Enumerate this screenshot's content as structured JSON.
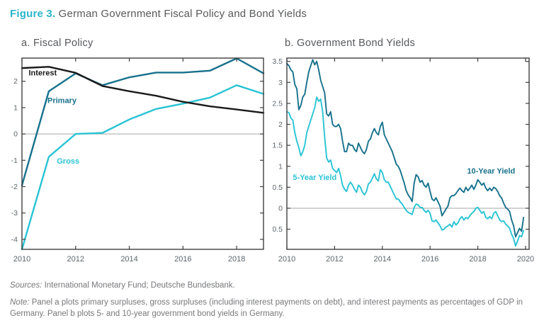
{
  "title": {
    "prefix": "Figure 3.",
    "rest": " German Government Fiscal Policy and Bond Yields"
  },
  "colors": {
    "accent": "#2ab5c9",
    "title_text": "#58595b",
    "heading_text": "#56585c",
    "frame": "#3e3e3e",
    "tick_text": "#5d666d",
    "zero_line": "#a6a6a6",
    "dark_teal": "#17718c",
    "cyan": "#29c3d4",
    "black_line": "#1a1a1a",
    "note_text": "#77787b"
  },
  "chart_data": [
    {
      "type": "line",
      "title": "a. Fiscal Policy",
      "x": [
        2010,
        2011,
        2012,
        2013,
        2014,
        2015,
        2016,
        2017,
        2018,
        2019
      ],
      "xlim": [
        2010,
        2019
      ],
      "ylim": [
        -4.38,
        2.88
      ],
      "xticks": [
        2010,
        2012,
        2014,
        2016,
        2018
      ],
      "yticks": [
        2,
        1,
        0,
        -1,
        -2,
        -3,
        -4
      ],
      "zero_line": true,
      "grid": false,
      "legend_position": "inline-labels",
      "series": [
        {
          "name": "Gross",
          "color": "#29c3d4",
          "label": {
            "x": 2011.3,
            "y": -1.05
          },
          "values": [
            -4.38,
            -0.87,
            0.0,
            0.04,
            0.55,
            0.95,
            1.15,
            1.38,
            1.85,
            1.52
          ]
        },
        {
          "name": "Primary",
          "color": "#17718c",
          "label": {
            "x": 2010.95,
            "y": 1.25
          },
          "values": [
            -1.95,
            1.62,
            2.3,
            1.85,
            2.15,
            2.33,
            2.33,
            2.4,
            2.87,
            2.3
          ]
        },
        {
          "name": "Interest",
          "color": "#1a1a1a",
          "label": {
            "x": 2010.25,
            "y": 2.3
          },
          "values": [
            2.5,
            2.55,
            2.32,
            1.82,
            1.62,
            1.45,
            1.22,
            1.05,
            0.93,
            0.8
          ]
        }
      ]
    },
    {
      "type": "line",
      "title": "b. Government Bond Yields",
      "x_start": 2010.0,
      "x_step": 0.083333,
      "xlim": [
        2010,
        2020.15
      ],
      "ylim": [
        -0.98,
        3.58
      ],
      "xticks": [
        2010,
        2012,
        2014,
        2016,
        2018,
        2020
      ],
      "yticks": [
        3.5,
        3,
        2.5,
        2,
        1.5,
        1,
        0.5,
        0,
        -0.5
      ],
      "zero_line": true,
      "grid": false,
      "legend_position": "inline-labels",
      "series": [
        {
          "name": "5-Year Yield",
          "color": "#29c3d4",
          "label": {
            "x": 2010.25,
            "y": 0.72
          },
          "values": [
            2.3,
            2.28,
            2.15,
            2.1,
            1.8,
            1.6,
            1.45,
            1.25,
            1.35,
            1.5,
            1.8,
            1.95,
            2.1,
            2.25,
            2.4,
            2.65,
            2.55,
            2.6,
            2.3,
            1.7,
            1.2,
            1.1,
            1.15,
            0.95,
            0.9,
            0.85,
            0.95,
            0.78,
            0.55,
            0.45,
            0.4,
            0.55,
            0.62,
            0.55,
            0.45,
            0.38,
            0.55,
            0.5,
            0.38,
            0.32,
            0.4,
            0.58,
            0.62,
            0.72,
            0.82,
            0.7,
            0.65,
            0.92,
            0.85,
            0.68,
            0.62,
            0.62,
            0.52,
            0.42,
            0.32,
            0.22,
            0.22,
            0.15,
            0.1,
            0.02,
            -0.05,
            -0.1,
            -0.12,
            -0.15,
            0.02,
            0.1,
            0.08,
            0.02,
            0.02,
            -0.05,
            -0.1,
            -0.05,
            -0.12,
            -0.3,
            -0.32,
            -0.28,
            -0.35,
            -0.42,
            -0.52,
            -0.5,
            -0.45,
            -0.42,
            -0.38,
            -0.45,
            -0.32,
            -0.4,
            -0.35,
            -0.25,
            -0.2,
            -0.28,
            -0.22,
            -0.25,
            -0.18,
            -0.12,
            -0.08,
            0.0,
            0.02,
            -0.05,
            -0.12,
            -0.08,
            -0.22,
            -0.25,
            -0.2,
            -0.25,
            -0.12,
            -0.08,
            -0.18,
            -0.28,
            -0.32,
            -0.3,
            -0.38,
            -0.42,
            -0.48,
            -0.62,
            -0.72,
            -0.9,
            -0.78,
            -0.65,
            -0.68,
            -0.53
          ]
        },
        {
          "name": "10-Year Yield",
          "color": "#17718c",
          "label": {
            "x": 2017.55,
            "y": 0.88
          },
          "values": [
            3.45,
            3.4,
            3.3,
            3.25,
            2.95,
            2.85,
            2.35,
            2.45,
            2.65,
            2.72,
            3.0,
            3.25,
            3.4,
            3.54,
            3.42,
            3.5,
            3.3,
            3.05,
            2.9,
            2.75,
            2.25,
            2.2,
            2.3,
            2.0,
            1.95,
            1.95,
            2.0,
            1.9,
            1.6,
            1.35,
            1.35,
            1.55,
            1.5,
            1.5,
            1.4,
            1.35,
            1.55,
            1.45,
            1.35,
            1.3,
            1.4,
            1.6,
            1.65,
            1.8,
            1.9,
            1.8,
            1.75,
            1.95,
            2.05,
            1.75,
            1.65,
            1.55,
            1.45,
            1.35,
            1.2,
            1.05,
            1.0,
            0.9,
            0.75,
            0.6,
            0.42,
            0.32,
            0.25,
            0.16,
            0.6,
            0.8,
            0.75,
            0.62,
            0.66,
            0.55,
            0.5,
            0.6,
            0.4,
            0.22,
            0.18,
            0.25,
            0.15,
            0.05,
            -0.18,
            -0.1,
            -0.02,
            0.05,
            0.25,
            0.3,
            0.3,
            0.35,
            0.42,
            0.48,
            0.42,
            0.38,
            0.5,
            0.42,
            0.48,
            0.55,
            0.45,
            0.55,
            0.68,
            0.62,
            0.55,
            0.6,
            0.48,
            0.42,
            0.48,
            0.42,
            0.5,
            0.47,
            0.4,
            0.3,
            0.24,
            0.12,
            0.02,
            -0.02,
            -0.08,
            -0.28,
            -0.42,
            -0.68,
            -0.58,
            -0.48,
            -0.55,
            -0.22
          ]
        }
      ]
    }
  ],
  "footer": {
    "sources_label": "Sources:",
    "sources_text": " International Monetary Fund; Deutsche Bundesbank.",
    "note_label": "Note:",
    "note_text": " Panel a plots primary surpluses, gross surpluses (including interest payments on debt), and interest payments as percentages of GDP in Germany. Panel b plots 5- and 10-year government bond yields in Germany."
  }
}
